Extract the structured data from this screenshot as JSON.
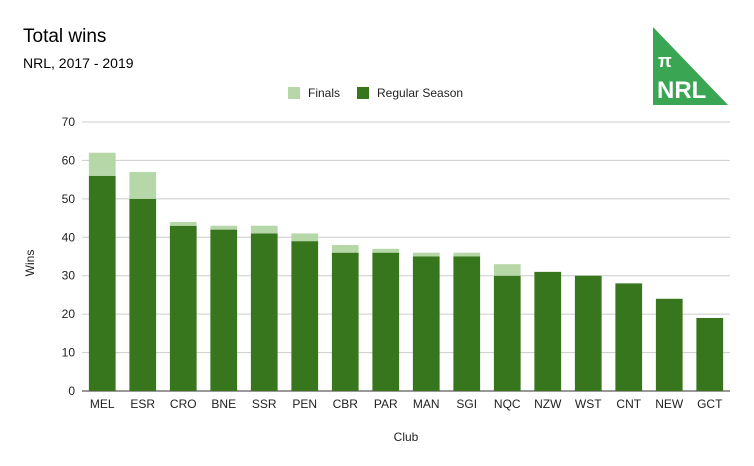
{
  "chart_data": {
    "type": "bar",
    "stacked": true,
    "title": "Total wins",
    "subtitle": "NRL, 2017 - 2019",
    "xlabel": "Club",
    "ylabel": "Wins",
    "ylim": [
      0,
      70
    ],
    "yticks": [
      0,
      10,
      20,
      30,
      40,
      50,
      60,
      70
    ],
    "grid": true,
    "legend_position": "top",
    "categories": [
      "MEL",
      "ESR",
      "CRO",
      "BNE",
      "SSR",
      "PEN",
      "CBR",
      "PAR",
      "MAN",
      "SGI",
      "NQC",
      "NZW",
      "WST",
      "CNT",
      "NEW",
      "GCT"
    ],
    "series": [
      {
        "name": "Regular Season",
        "color": "#38761d",
        "values": [
          56,
          50,
          43,
          42,
          41,
          39,
          36,
          36,
          35,
          35,
          30,
          31,
          30,
          28,
          24,
          19
        ]
      },
      {
        "name": "Finals",
        "color": "#b6d7a8",
        "values": [
          6,
          7,
          1,
          1,
          2,
          2,
          2,
          1,
          1,
          1,
          3,
          0,
          0,
          0,
          0,
          0
        ]
      }
    ]
  },
  "logo": {
    "symbol": "π",
    "text": "NRL",
    "color": "#3aa552"
  }
}
